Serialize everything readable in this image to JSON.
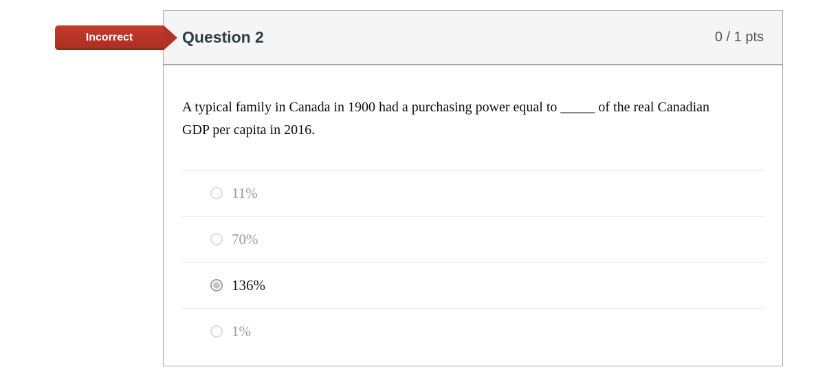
{
  "status_flag": {
    "label": "Incorrect",
    "color": "#b93528"
  },
  "header": {
    "title": "Question 2",
    "points": "0 / 1 pts"
  },
  "question": {
    "text": "A typical family in Canada in 1900 had a purchasing power equal to _____ of the real Canadian GDP per capita in 2016.",
    "options": [
      {
        "label": "11%",
        "selected": false
      },
      {
        "label": "70%",
        "selected": false
      },
      {
        "label": "136%",
        "selected": true
      },
      {
        "label": "1%",
        "selected": false
      }
    ]
  },
  "colors": {
    "header_background": "#f5f5f5",
    "card_border": "#a5a5a5",
    "title_text": "#2d3b45",
    "points_text": "#555555",
    "divider": "#e7e7e7",
    "unselected_option_text": "#9a9a9a",
    "selected_option_text": "#151515"
  }
}
